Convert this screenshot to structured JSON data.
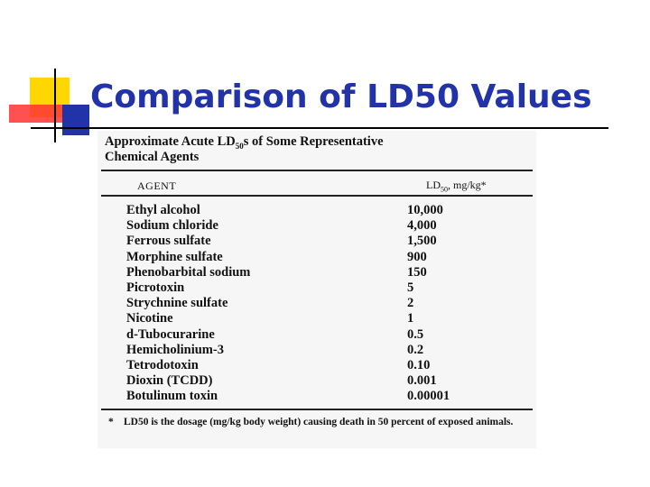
{
  "slide": {
    "title": "Comparison of LD50 Values"
  },
  "table": {
    "caption_line1": "Approximate Acute LD",
    "caption_sub": "50",
    "caption_line1_rest": "s of Some Representative",
    "caption_line2": "Chemical Agents",
    "header_agent": "AGENT",
    "header_ld": "LD",
    "header_ld_sub": "50",
    "header_ld_rest": ", mg/kg*",
    "rows": [
      {
        "agent": "Ethyl alcohol",
        "value": "10,000"
      },
      {
        "agent": "Sodium chloride",
        "value": "4,000"
      },
      {
        "agent": "Ferrous sulfate",
        "value": "1,500"
      },
      {
        "agent": "Morphine sulfate",
        "value": "900"
      },
      {
        "agent": "Phenobarbital sodium",
        "value": "150"
      },
      {
        "agent": "Picrotoxin",
        "value": "5"
      },
      {
        "agent": "Strychnine sulfate",
        "value": "2"
      },
      {
        "agent": "Nicotine",
        "value": "1"
      },
      {
        "agent": "d-Tubocurarine",
        "value": "0.5"
      },
      {
        "agent": "Hemicholinium-3",
        "value": "0.2"
      },
      {
        "agent": "Tetrodotoxin",
        "value": "0.10"
      },
      {
        "agent": "Dioxin (TCDD)",
        "value": "0.001"
      },
      {
        "agent": "Botulinum toxin",
        "value": "0.00001"
      }
    ],
    "footnote_bullet": "*",
    "footnote": "LD50 is the dosage (mg/kg body weight) causing death in 50 percent of exposed animals."
  }
}
